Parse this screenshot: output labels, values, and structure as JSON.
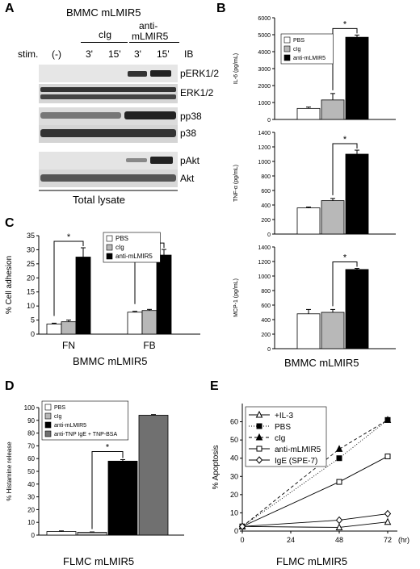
{
  "panel_a": {
    "letter": "A",
    "title": "BMMC mLMIR5",
    "stim_label": "stim.",
    "ib_label": "IB",
    "groups": [
      {
        "label": "(-)"
      },
      {
        "label": "cIg",
        "times": [
          "3'",
          "15'"
        ]
      },
      {
        "label": "anti-\nmLMIR5",
        "times": [
          "3'",
          "15'"
        ]
      }
    ],
    "group_labels": [
      "(-)",
      "cIg",
      "anti-",
      "mLMIR5"
    ],
    "times": [
      "3'",
      "15'",
      "3'",
      "15'"
    ],
    "blots": [
      "pERK1/2",
      "ERK1/2",
      "pp38",
      "p38",
      "pAkt",
      "Akt"
    ],
    "footer": "Total lysate"
  },
  "panel_b": {
    "letter": "B",
    "footer": "BMMC mLMIR5",
    "legend": [
      "PBS",
      "cIg",
      "anti-mLMIR5"
    ],
    "colors": {
      "PBS": "#ffffff",
      "cIg": "#b4b4b4",
      "anti-mLMIR5": "#000000"
    }
  },
  "panel_c": {
    "letter": "C",
    "footer": "BMMC mLMIR5",
    "legend": [
      "PBS",
      "cIg",
      "anti-mLMIR5"
    ]
  },
  "panel_d": {
    "letter": "D",
    "footer": "FLMC mLMIR5",
    "legend": [
      "PBS",
      "cIg",
      "anti-mLMIR5",
      "anti-TNP IgE + TNP-BSA"
    ]
  },
  "panel_e": {
    "letter": "E",
    "footer": "FLMC mLMIR5",
    "legend": [
      "+IL-3",
      "PBS",
      "cIg",
      "anti-mLMIR5",
      "IgE (SPE-7)"
    ],
    "x_unit": "(hr)"
  },
  "chart_data": [
    {
      "id": "B1",
      "type": "bar",
      "ylabel": "IL-6 (pg/mL)",
      "ylim": [
        0,
        6000
      ],
      "yticks": [
        0,
        1000,
        2000,
        3000,
        4000,
        5000,
        6000
      ],
      "series": [
        {
          "name": "PBS",
          "values": [
            650
          ]
        },
        {
          "name": "cIg",
          "values": [
            1150
          ]
        },
        {
          "name": "anti-mLMIR5",
          "values": [
            4850
          ]
        }
      ],
      "errors": [
        80,
        380,
        130
      ],
      "significance": "*"
    },
    {
      "id": "B2",
      "type": "bar",
      "ylabel": "TNF-α (pg/mL)",
      "ylim": [
        0,
        1400
      ],
      "yticks": [
        0,
        200,
        400,
        600,
        800,
        1000,
        1200,
        1400
      ],
      "series": [
        {
          "name": "PBS",
          "values": [
            360
          ]
        },
        {
          "name": "cIg",
          "values": [
            460
          ]
        },
        {
          "name": "anti-mLMIR5",
          "values": [
            1100
          ]
        }
      ],
      "errors": [
        12,
        30,
        55
      ],
      "significance": "*"
    },
    {
      "id": "B3",
      "type": "bar",
      "ylabel": "MCP-1 (pg/mL)",
      "ylim": [
        0,
        1400
      ],
      "yticks": [
        0,
        200,
        400,
        600,
        800,
        1000,
        1200,
        1400
      ],
      "series": [
        {
          "name": "PBS",
          "values": [
            480
          ]
        },
        {
          "name": "cIg",
          "values": [
            500
          ]
        },
        {
          "name": "anti-mLMIR5",
          "values": [
            1090
          ]
        }
      ],
      "errors": [
        60,
        40,
        15
      ],
      "significance": "*"
    },
    {
      "id": "C",
      "type": "bar",
      "ylabel": "% Cell adhesion",
      "ylim": [
        0,
        35
      ],
      "yticks": [
        0,
        5,
        10,
        15,
        20,
        25,
        30,
        35
      ],
      "categories": [
        "FN",
        "FB"
      ],
      "series": [
        {
          "name": "PBS",
          "values": [
            3.6,
            7.8
          ]
        },
        {
          "name": "cIg",
          "values": [
            4.4,
            8.4
          ]
        },
        {
          "name": "anti-mLMIR5",
          "values": [
            27.4,
            28.1
          ]
        }
      ],
      "errors": [
        [
          0.3,
          0.6,
          3.3
        ],
        [
          0.3,
          0.4,
          2.0
        ]
      ],
      "significance": "*"
    },
    {
      "id": "D",
      "type": "bar",
      "ylabel": "% Histamine release",
      "ylim": [
        0,
        100
      ],
      "yticks": [
        0,
        10,
        20,
        30,
        40,
        50,
        60,
        70,
        80,
        90,
        100
      ],
      "series": [
        {
          "name": "PBS",
          "values": [
            2.8
          ]
        },
        {
          "name": "cIg",
          "values": [
            2.2
          ]
        },
        {
          "name": "anti-mLMIR5",
          "values": [
            58
          ]
        },
        {
          "name": "anti-TNP IgE + TNP-BSA",
          "values": [
            94
          ]
        }
      ],
      "errors": [
        0.5,
        0.3,
        1.2,
        0.5
      ],
      "significance": "*"
    },
    {
      "id": "E",
      "type": "line",
      "ylabel": "% Apoptosis",
      "xlabel": "(hr)",
      "ylim": [
        0,
        70
      ],
      "xlim": [
        0,
        72
      ],
      "yticks": [
        0,
        10,
        20,
        30,
        40,
        50,
        60
      ],
      "xticks": [
        0,
        24,
        48,
        72
      ],
      "x": [
        0,
        48,
        72
      ],
      "series": [
        {
          "name": "+IL-3",
          "values": [
            2.5,
            2,
            5
          ],
          "marker": "triangle-open",
          "dash": "solid"
        },
        {
          "name": "PBS",
          "values": [
            2.5,
            40,
            61
          ],
          "marker": "square-filled",
          "dash": "dotted"
        },
        {
          "name": "cIg",
          "values": [
            2.5,
            45,
            61
          ],
          "marker": "triangle-filled",
          "dash": "dashed"
        },
        {
          "name": "anti-mLMIR5",
          "values": [
            2.5,
            27,
            41
          ],
          "marker": "square-open",
          "dash": "solid"
        },
        {
          "name": "IgE (SPE-7)",
          "values": [
            2.5,
            6,
            9.5
          ],
          "marker": "diamond-open",
          "dash": "solid"
        }
      ]
    }
  ]
}
